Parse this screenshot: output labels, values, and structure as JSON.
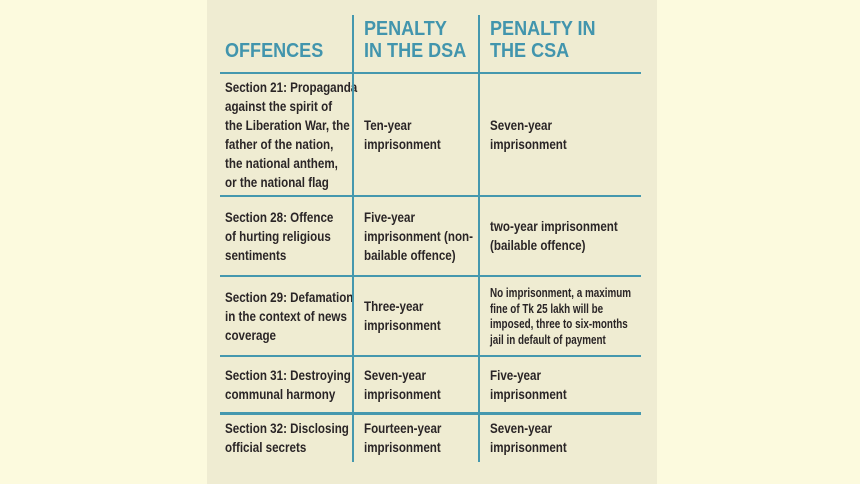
{
  "colors": {
    "outer_background": "#fcfade",
    "panel_background": "#efecd2",
    "accent_teal": "#4598ae",
    "header_text": "#4295ad",
    "body_text": "#2a2526"
  },
  "table": {
    "columns": [
      {
        "label": "OFFENCES"
      },
      {
        "label": "PENALTY\nIN THE DSA"
      },
      {
        "label": "PENALTY IN\nTHE CSA"
      }
    ],
    "rows": [
      {
        "offence": "Section 21: Propaganda\nagainst the spirit of\nthe Liberation War, the\nfather of the nation,\nthe national anthem,\nor the national flag",
        "dsa": "Ten-year\nimprisonment",
        "csa": "Seven-year\nimprisonment"
      },
      {
        "offence": "Section 28: Offence\nof hurting religious\nsentiments",
        "dsa": "Five-year\nimprisonment (non-\nbailable offence)",
        "csa": "two-year imprisonment\n(bailable offence)"
      },
      {
        "offence": "Section 29: Defamation\nin the context of news\ncoverage",
        "dsa": "Three-year\nimprisonment",
        "csa": "No imprisonment, a maximum\nfine of Tk 25 lakh will be\nimposed, three to six-months\njail in default of payment"
      },
      {
        "offence": "Section 31: Destroying\ncommunal harmony",
        "dsa": "Seven-year\nimprisonment",
        "csa": "Five-year\nimprisonment"
      },
      {
        "offence": "Section 32: Disclosing\nofficial secrets",
        "dsa": "Fourteen-year\nimprisonment",
        "csa": "Seven-year\nimprisonment"
      }
    ]
  }
}
